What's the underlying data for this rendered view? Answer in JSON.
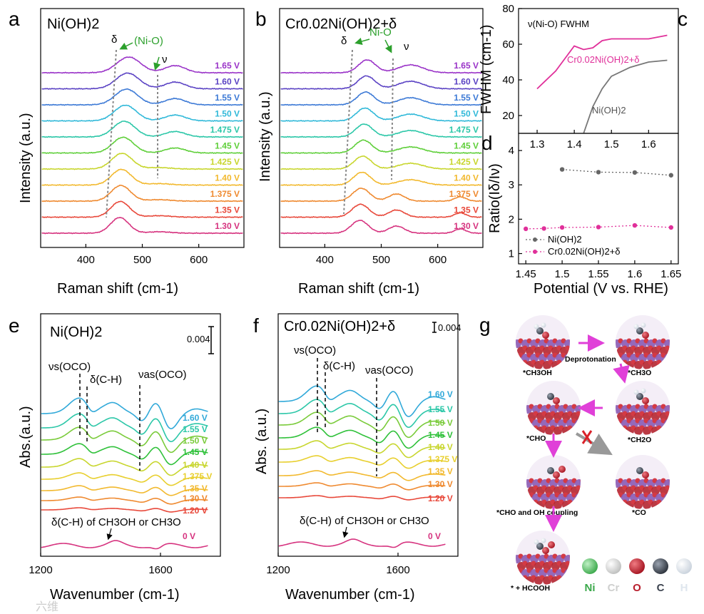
{
  "chart_data": [
    {
      "id": "a",
      "type": "line",
      "panel_label": "a",
      "title": "Ni(OH)2",
      "xlabel": "Raman shift (cm-1)",
      "ylabel": "Intensity (a.u.)",
      "xlim": [
        320,
        680
      ],
      "xticks": [
        "400",
        "500",
        "600"
      ],
      "series": [
        {
          "name": "1.30 V",
          "color": "#d6337f",
          "peak": 460
        },
        {
          "name": "1.35 V",
          "color": "#e8483a",
          "peak": 461
        },
        {
          "name": "1.375 V",
          "color": "#ef8a30",
          "peak": 462
        },
        {
          "name": "1.40 V",
          "color": "#f2b92e",
          "peak": 463
        },
        {
          "name": "1.425 V",
          "color": "#c8d62e",
          "peak": 464
        },
        {
          "name": "1.45 V",
          "color": "#5fcf3a",
          "peak": 466
        },
        {
          "name": "1.475 V",
          "color": "#2cc7a8",
          "peak": 468
        },
        {
          "name": "1.50 V",
          "color": "#31b9d9",
          "peak": 470
        },
        {
          "name": "1.55 V",
          "color": "#3d7ad6",
          "peak": 472
        },
        {
          "name": "1.60 V",
          "color": "#5b43c4",
          "peak": 474
        },
        {
          "name": "1.65 V",
          "color": "#9a34c8",
          "peak": 476
        }
      ],
      "annotations": {
        "delta": "δ",
        "nio": "(Ni-O)",
        "nu": "ν"
      }
    },
    {
      "id": "b",
      "type": "line",
      "panel_label": "b",
      "title": "Cr0.02Ni(OH)2+δ",
      "xlabel": "Raman shift (cm-1)",
      "ylabel": "Intensity (a.u.)",
      "xlim": [
        320,
        680
      ],
      "xticks": [
        "400",
        "500",
        "600"
      ],
      "series": [
        {
          "name": "1.30 V",
          "color": "#d6337f"
        },
        {
          "name": "1.35 V",
          "color": "#e8483a"
        },
        {
          "name": "1.375 V",
          "color": "#ef8a30"
        },
        {
          "name": "1.40 V",
          "color": "#f2b92e"
        },
        {
          "name": "1.425 V",
          "color": "#c8d62e"
        },
        {
          "name": "1.45 V",
          "color": "#5fcf3a"
        },
        {
          "name": "1.475 V",
          "color": "#2cc7a8"
        },
        {
          "name": "1.50 V",
          "color": "#31b9d9"
        },
        {
          "name": "1.55 V",
          "color": "#3d7ad6"
        },
        {
          "name": "1.60 V",
          "color": "#5b43c4"
        },
        {
          "name": "1.65 V",
          "color": "#9a34c8"
        }
      ],
      "annotations": {
        "delta": "δ",
        "nio": "Ni-O",
        "nu": "ν"
      }
    },
    {
      "id": "c",
      "type": "line",
      "panel_label": "c",
      "title": "ν(Ni-O) FWHM",
      "ylabel": "FWHM (cm-1)",
      "xlim": [
        1.25,
        1.68
      ],
      "ylim": [
        10,
        80
      ],
      "xticks": [
        1.3,
        1.4,
        1.5,
        1.6
      ],
      "yticks": [
        20,
        40,
        60,
        80
      ],
      "series": [
        {
          "name": "Cr0.02Ni(OH)2+δ",
          "color": "#e0309a",
          "x": [
            1.3,
            1.35,
            1.375,
            1.4,
            1.425,
            1.45,
            1.475,
            1.5,
            1.55,
            1.6,
            1.65
          ],
          "y": [
            35,
            45,
            52,
            59,
            57,
            58,
            62,
            63,
            63,
            63,
            65
          ]
        },
        {
          "name": "Ni(OH)2",
          "color": "#777777",
          "x": [
            1.425,
            1.45,
            1.475,
            1.5,
            1.55,
            1.6,
            1.65
          ],
          "y": [
            10,
            25,
            35,
            42,
            47,
            50,
            51
          ]
        }
      ]
    },
    {
      "id": "d",
      "type": "scatter",
      "panel_label": "d",
      "xlabel": "Potential (V vs. RHE)",
      "ylabel": "Ratio(Iδ/Iν)",
      "xlim": [
        1.44,
        1.66
      ],
      "ylim": [
        0.7,
        4.5
      ],
      "xticks": [
        1.45,
        1.5,
        1.55,
        1.6,
        1.65
      ],
      "yticks": [
        1,
        2,
        3,
        4
      ],
      "series": [
        {
          "name": "Ni(OH)2",
          "color": "#666666",
          "x": [
            1.5,
            1.55,
            1.6,
            1.65
          ],
          "y": [
            3.45,
            3.37,
            3.36,
            3.28
          ]
        },
        {
          "name": "Cr0.02Ni(OH)2+δ",
          "color": "#e0309a",
          "x": [
            1.45,
            1.475,
            1.5,
            1.55,
            1.6,
            1.65
          ],
          "y": [
            1.72,
            1.73,
            1.76,
            1.77,
            1.82,
            1.76
          ]
        }
      ]
    },
    {
      "id": "e",
      "type": "line",
      "panel_label": "e",
      "title": "Ni(OH)2",
      "xlabel": "Wavenumber (cm-1)",
      "ylabel": "Abs.(a.u.)",
      "xlim": [
        1200,
        1800
      ],
      "xticks": [
        "1200",
        "1600"
      ],
      "scalebar": "0.004",
      "series": [
        {
          "name": "0 V",
          "color": "#d6337f"
        },
        {
          "name": "1.20 V",
          "color": "#e8483a"
        },
        {
          "name": "1.30 V",
          "color": "#ef8a30"
        },
        {
          "name": "1.35 V",
          "color": "#f2b92e"
        },
        {
          "name": "1.375 V",
          "color": "#e8cf2e"
        },
        {
          "name": "1.40 V",
          "color": "#c8d62e"
        },
        {
          "name": "1.45 V",
          "color": "#2fc13a"
        },
        {
          "name": "1.50 V",
          "color": "#7acb3a"
        },
        {
          "name": "1.55 V",
          "color": "#2cc7a8"
        },
        {
          "name": "1.60 V",
          "color": "#31a9d9"
        }
      ],
      "annotations": {
        "vs": "νs(OCO)",
        "dch": "δ(C-H)",
        "vas": "νas(OCO)",
        "bottom": "δ(C-H) of CH3OH or CH3O"
      }
    },
    {
      "id": "f",
      "type": "line",
      "panel_label": "f",
      "title": "Cr0.02Ni(OH)2+δ",
      "xlabel": "Wavenumber (cm-1)",
      "ylabel": "Abs. (a.u.)",
      "xlim": [
        1200,
        1800
      ],
      "xticks": [
        "1200",
        "1600"
      ],
      "scalebar": "0.004",
      "series": [
        {
          "name": "0 V",
          "color": "#d6337f"
        },
        {
          "name": "1.20 V",
          "color": "#e8483a"
        },
        {
          "name": "1.30 V",
          "color": "#ef8a30"
        },
        {
          "name": "1.35 V",
          "color": "#f2b92e"
        },
        {
          "name": "1.375 V",
          "color": "#e8cf2e"
        },
        {
          "name": "1.40 V",
          "color": "#c8d62e"
        },
        {
          "name": "1.45 V",
          "color": "#2fc13a"
        },
        {
          "name": "1.50 V",
          "color": "#7acb3a"
        },
        {
          "name": "1.55 V",
          "color": "#2cc7a8"
        },
        {
          "name": "1.60 V",
          "color": "#31a9d9"
        }
      ],
      "annotations": {
        "vs": "νs(OCO)",
        "dch": "δ(C-H)",
        "vas": "νas(OCO)",
        "bottom": "δ(C-H) of CH3OH or CH3O"
      }
    }
  ],
  "mechanism": {
    "panel_label": "g",
    "states": [
      "*CH3OH",
      "*CH3O",
      "*CH2O",
      "*CHO",
      "*CO",
      "*CHO and OH coupling",
      "* + HCOOH"
    ],
    "deprotonation": "Deprotonation",
    "legend": [
      {
        "label": "Ni",
        "color": "#3aa84a"
      },
      {
        "label": "Cr",
        "color": "#cfd0cf"
      },
      {
        "label": "O",
        "color": "#b81d2c"
      },
      {
        "label": "C",
        "color": "#3d4450"
      },
      {
        "label": "H",
        "color": "#dfe6ee"
      }
    ]
  },
  "watermark": "六维",
  "colors": {
    "arrow": "#e040d8",
    "blocked": "#999999",
    "cross": "#d9222a"
  }
}
